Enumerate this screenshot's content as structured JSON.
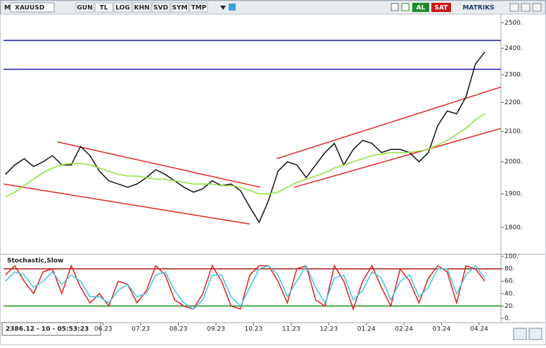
{
  "toolbar": {
    "menu": "M",
    "symbol": "XAUUSD",
    "buttons": [
      "GUN",
      "TL",
      "LOG",
      "KHN",
      "SVD",
      "SYM",
      "TMP"
    ],
    "buy": "AL",
    "sell": "SAT",
    "brand": "MATRIKS"
  },
  "status": "2386.12 - 10 - 05:53:23",
  "chart_data": [
    {
      "type": "line",
      "log_scale": true,
      "x": [
        -2.6,
        -2.35,
        -2.1,
        -1.85,
        -1.6,
        -1.35,
        -1.1,
        -0.85,
        -0.6,
        -0.35,
        -0.1,
        0.15,
        0.4,
        0.65,
        0.9,
        1.15,
        1.4,
        1.65,
        1.9,
        2.15,
        2.4,
        2.65,
        2.9,
        3.15,
        3.4,
        3.65,
        3.9,
        4.15,
        4.4,
        4.65,
        4.9,
        5.15,
        5.4,
        5.65,
        5.9,
        6.15,
        6.4,
        6.65,
        6.9,
        7.15,
        7.4,
        7.65,
        7.9,
        8.15,
        8.4,
        8.65,
        8.9,
        9.15,
        9.4,
        9.65,
        9.9,
        10.15
      ],
      "series": [
        {
          "color": "#111111",
          "values": [
            1960,
            1990,
            2010,
            1985,
            2000,
            2020,
            1990,
            1990,
            2050,
            2020,
            1970,
            1940,
            1930,
            1920,
            1930,
            1950,
            1975,
            1960,
            1940,
            1920,
            1905,
            1915,
            1940,
            1925,
            1930,
            1910,
            1860,
            1815,
            1880,
            1970,
            2000,
            1990,
            1950,
            1990,
            2030,
            2060,
            1990,
            2040,
            2070,
            2060,
            2030,
            2040,
            2040,
            2030,
            2000,
            2030,
            2120,
            2170,
            2160,
            2220,
            2340,
            2385
          ]
        },
        {
          "color": "#8fe03a",
          "values": [
            1890,
            1905,
            1925,
            1945,
            1965,
            1980,
            1990,
            1995,
            1995,
            1990,
            1980,
            1970,
            1960,
            1955,
            1955,
            1950,
            1945,
            1945,
            1940,
            1935,
            1930,
            1930,
            1930,
            1925,
            1925,
            1920,
            1910,
            1900,
            1900,
            1905,
            1920,
            1935,
            1945,
            1955,
            1965,
            1980,
            1990,
            2000,
            2010,
            2020,
            2025,
            2030,
            2030,
            2030,
            2035,
            2040,
            2055,
            2070,
            2090,
            2110,
            2140,
            2160
          ]
        }
      ],
      "trendlines": [
        {
          "color": "#e02828",
          "x": [
            -1.22,
            4.18
          ],
          "values": [
            2065,
            1920
          ]
        },
        {
          "color": "#e02828",
          "x": [
            -2.65,
            3.9
          ],
          "values": [
            1930,
            1810
          ]
        },
        {
          "color": "#e02828",
          "x": [
            4.61,
            10.58
          ],
          "values": [
            2010,
            2255
          ]
        },
        {
          "color": "#e02828",
          "x": [
            5.08,
            10.58
          ],
          "values": [
            1920,
            2110
          ]
        }
      ],
      "hlines": [
        {
          "value": 2430,
          "color": "#1a1aa0"
        },
        {
          "value": 2320,
          "color": "#1a1aa0"
        }
      ],
      "xlim": [
        -2.65,
        10.58
      ],
      "ylim": [
        1730,
        2535
      ],
      "yticks": [
        {
          "value": 2500,
          "label": "2500."
        },
        {
          "value": 2400,
          "label": "2400."
        },
        {
          "value": 2300,
          "label": "2300."
        },
        {
          "value": 2200,
          "label": "2200."
        },
        {
          "value": 2100,
          "label": "2100."
        },
        {
          "value": 2000,
          "label": "2000."
        },
        {
          "value": 1900,
          "label": "1900."
        },
        {
          "value": 1800,
          "label": "1800."
        }
      ]
    },
    {
      "type": "line",
      "title": "Stochastic,Slow",
      "x": [
        -2.6,
        -2.35,
        -2.1,
        -1.85,
        -1.6,
        -1.35,
        -1.1,
        -0.85,
        -0.6,
        -0.35,
        -0.1,
        0.15,
        0.4,
        0.65,
        0.9,
        1.15,
        1.4,
        1.65,
        1.9,
        2.15,
        2.4,
        2.65,
        2.9,
        3.15,
        3.4,
        3.65,
        3.9,
        4.15,
        4.4,
        4.65,
        4.9,
        5.15,
        5.4,
        5.65,
        5.9,
        6.15,
        6.4,
        6.65,
        6.9,
        7.15,
        7.4,
        7.65,
        7.9,
        8.15,
        8.4,
        8.65,
        8.9,
        9.15,
        9.4,
        9.65,
        9.9,
        10.15
      ],
      "series": [
        {
          "color": "#e02020",
          "values": [
            70,
            85,
            60,
            40,
            75,
            80,
            40,
            85,
            50,
            25,
            40,
            20,
            60,
            55,
            25,
            45,
            85,
            70,
            30,
            20,
            15,
            40,
            85,
            60,
            20,
            15,
            70,
            85,
            85,
            60,
            25,
            80,
            85,
            30,
            20,
            85,
            60,
            15,
            60,
            85,
            50,
            20,
            80,
            60,
            25,
            65,
            85,
            75,
            25,
            85,
            80,
            60
          ]
        },
        {
          "color": "#3cc8e0",
          "values": [
            60,
            75,
            70,
            50,
            60,
            75,
            55,
            70,
            60,
            35,
            35,
            25,
            45,
            55,
            35,
            40,
            70,
            75,
            45,
            25,
            15,
            30,
            70,
            70,
            35,
            20,
            50,
            80,
            85,
            70,
            35,
            60,
            85,
            50,
            25,
            65,
            70,
            30,
            45,
            75,
            65,
            30,
            60,
            70,
            35,
            50,
            80,
            80,
            40,
            70,
            85,
            65
          ]
        }
      ],
      "hlines": [
        {
          "value": 80,
          "color": "#a01818"
        },
        {
          "value": 20,
          "color": "#189018"
        }
      ],
      "xlim": [
        -2.65,
        10.58
      ],
      "ylim": [
        0,
        100
      ],
      "yticks": [
        {
          "value": 100,
          "label": "100."
        },
        {
          "value": 80,
          "label": "80."
        },
        {
          "value": 60,
          "label": "60."
        },
        {
          "value": 40,
          "label": "40."
        },
        {
          "value": 20,
          "label": "20."
        },
        {
          "value": 0,
          "label": "0."
        }
      ],
      "xticks": [
        {
          "value": 0,
          "label": "06.23"
        },
        {
          "value": 1,
          "label": "07.23"
        },
        {
          "value": 2,
          "label": "08.23"
        },
        {
          "value": 3,
          "label": "09.23"
        },
        {
          "value": 4,
          "label": "10.23"
        },
        {
          "value": 5,
          "label": "11.23"
        },
        {
          "value": 6,
          "label": "12.23"
        },
        {
          "value": 7,
          "label": "01.24"
        },
        {
          "value": 8,
          "label": "02.24"
        },
        {
          "value": 9,
          "label": "03.24"
        },
        {
          "value": 10,
          "label": "04.24"
        }
      ]
    }
  ]
}
